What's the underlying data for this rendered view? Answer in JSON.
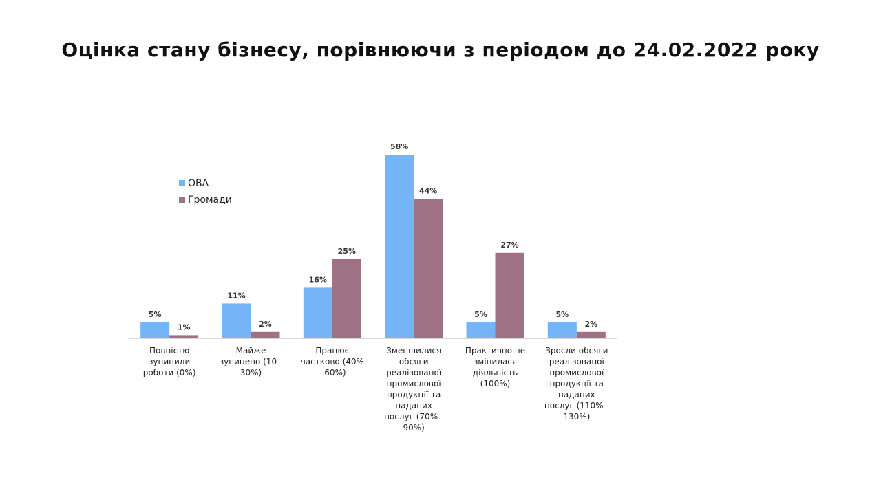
{
  "title": "Оцінка стану бізнесу, порівнюючи з періодом до 24.02.2022 року",
  "chart_data": {
    "type": "bar",
    "title": "Оцінка стану бізнесу, порівнюючи з періодом до 24.02.2022 року",
    "legend_position": "top-left",
    "grid": false,
    "ylim": [
      0,
      0.6
    ],
    "categories": [
      [
        "Повністю",
        "зупинили",
        "роботи (0%)"
      ],
      [
        "Майже",
        "зупинено (10 -",
        "30%)"
      ],
      [
        "Працює",
        "частково (40%",
        "- 60%)"
      ],
      [
        "Зменшилися",
        "обсяги",
        "реалізованої",
        "промислової",
        "продукції та",
        "наданих",
        "послуг (70% -",
        "90%)"
      ],
      [
        "Практично не",
        "змінилася",
        "діяльність",
        "(100%)"
      ],
      [
        "Зросли обсяги",
        "реалізованої",
        "промислової",
        "продукції та",
        "наданих",
        "послуг (110% -",
        "130%)"
      ]
    ],
    "series": [
      {
        "name": "ОВА",
        "color": "#74b4f7",
        "values": [
          0.05,
          0.11,
          0.16,
          0.58,
          0.05,
          0.05
        ],
        "labels": [
          "5%",
          "11%",
          "16%",
          "58%",
          "5%",
          "5%"
        ]
      },
      {
        "name": "Громади",
        "color": "#9e7185",
        "values": [
          0.01,
          0.02,
          0.25,
          0.44,
          0.27,
          0.02
        ],
        "labels": [
          "1%",
          "2%",
          "25%",
          "44%",
          "27%",
          "2%"
        ]
      }
    ]
  }
}
